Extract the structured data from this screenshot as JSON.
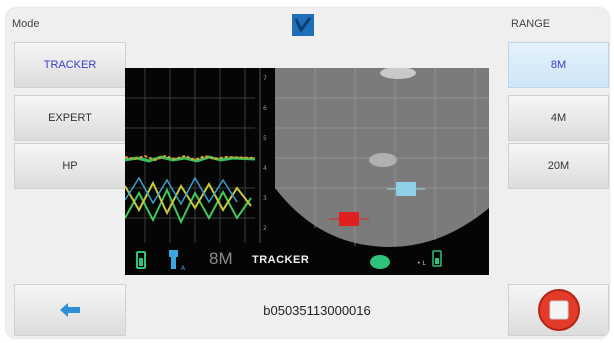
{
  "header": {
    "mode_label": "Mode",
    "range_label": "RANGE",
    "logo_icon": "checkmark-logo-icon",
    "logo_color": "#1f6fb8"
  },
  "mode_buttons": [
    {
      "label": "TRACKER",
      "selected": true
    },
    {
      "label": "EXPERT",
      "selected": false
    },
    {
      "label": "HP",
      "selected": false
    }
  ],
  "range_buttons": [
    {
      "label": "8M",
      "selected": true
    },
    {
      "label": "4M",
      "selected": false
    },
    {
      "label": "20M",
      "selected": false
    }
  ],
  "footer": {
    "back_icon": "arrow-left-icon",
    "back_icon_color": "#2e8fd8",
    "serial_number": "b05035113000016",
    "stop_icon": "stop-record-icon",
    "stop_icon_color": "#e23b2a"
  },
  "screen": {
    "range_readout": "8M",
    "mode_readout": "TRACKER",
    "status_icons": [
      "battery-icon",
      "signal-icon",
      "gps-icon",
      "phone-battery-icon"
    ],
    "status_color": "#2fc27a",
    "targets": [
      {
        "name": "target-red",
        "color": "#e02020"
      },
      {
        "name": "target-blue",
        "color": "#8fd0e8"
      }
    ]
  }
}
